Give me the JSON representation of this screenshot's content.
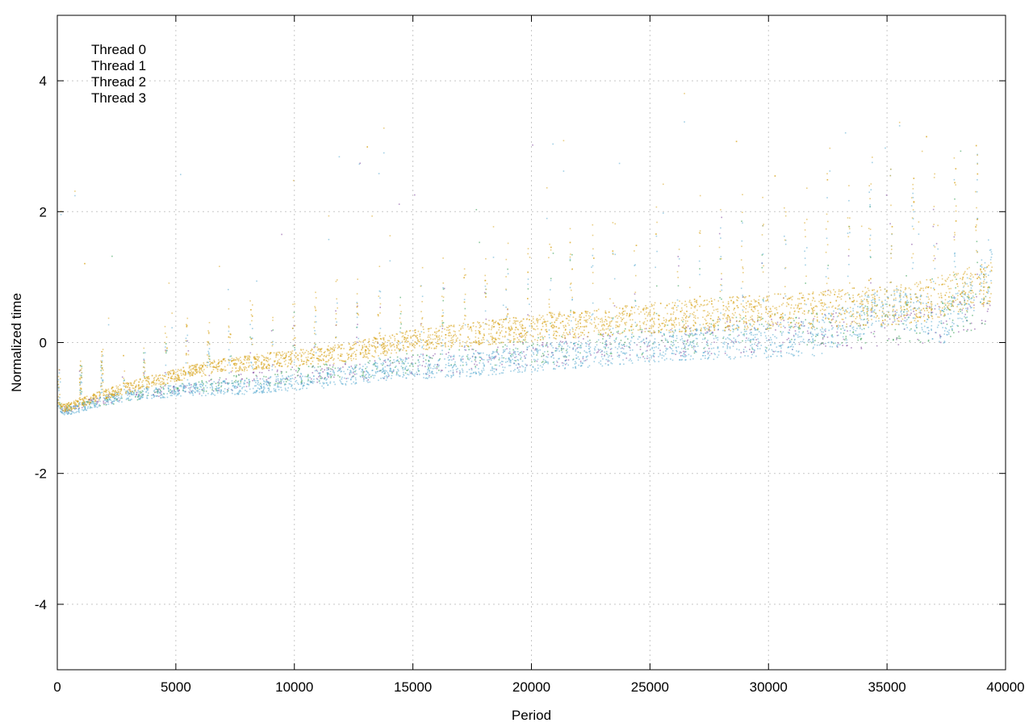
{
  "chart_data": {
    "type": "scatter",
    "title": "",
    "xlabel": "Period",
    "ylabel": "Normalized time",
    "xlim": [
      0,
      40000
    ],
    "ylim": [
      -5,
      5
    ],
    "xticks": [
      0,
      5000,
      10000,
      15000,
      20000,
      25000,
      30000,
      35000,
      40000
    ],
    "yticks": [
      -4,
      -2,
      0,
      2,
      4
    ],
    "grid": true,
    "legend_position": "top-left",
    "x_extent": [
      0,
      39400
    ],
    "series": [
      {
        "name": "Thread 0",
        "color": "#7b3f9a",
        "points": [
          [
            500,
            -1.02
          ],
          [
            1500,
            -0.92
          ],
          [
            3000,
            -0.8
          ],
          [
            6000,
            -0.72
          ],
          [
            9000,
            -0.55
          ],
          [
            12000,
            -0.5
          ],
          [
            15000,
            -0.4
          ],
          [
            18000,
            -0.3
          ],
          [
            21000,
            -0.2
          ],
          [
            24000,
            -0.1
          ],
          [
            27000,
            0.0
          ],
          [
            30000,
            0.05
          ],
          [
            33000,
            0.1
          ],
          [
            36000,
            0.15
          ],
          [
            39000,
            0.3
          ]
        ]
      },
      {
        "name": "Thread 1",
        "color": "#2b9a4c",
        "points": [
          [
            700,
            -1.0
          ],
          [
            2000,
            -0.9
          ],
          [
            4000,
            -0.78
          ],
          [
            7000,
            -0.65
          ],
          [
            10000,
            -0.55
          ],
          [
            13000,
            -0.42
          ],
          [
            16000,
            -0.32
          ],
          [
            19000,
            -0.22
          ],
          [
            22000,
            -0.12
          ],
          [
            25000,
            -0.02
          ],
          [
            28000,
            0.05
          ],
          [
            31000,
            0.12
          ],
          [
            34000,
            0.18
          ],
          [
            37000,
            0.25
          ],
          [
            39200,
            0.5
          ]
        ]
      },
      {
        "name": "Thread 2",
        "color": "#56a9cf",
        "points": [
          [
            500,
            -1.05
          ],
          [
            2500,
            -0.85
          ],
          [
            5000,
            -0.75
          ],
          [
            8000,
            -0.7
          ],
          [
            11000,
            -0.6
          ],
          [
            14000,
            -0.45
          ],
          [
            17000,
            -0.4
          ],
          [
            20000,
            -0.3
          ],
          [
            23000,
            -0.2
          ],
          [
            26000,
            -0.1
          ],
          [
            29000,
            -0.05
          ],
          [
            32000,
            0.0
          ],
          [
            35000,
            0.5
          ],
          [
            37500,
            0.2
          ],
          [
            39300,
            1.0
          ]
        ]
      },
      {
        "name": "Thread 3",
        "color": "#d9a521",
        "points": [
          [
            400,
            -1.0
          ],
          [
            2000,
            -0.8
          ],
          [
            4000,
            -0.6
          ],
          [
            6500,
            -0.4
          ],
          [
            9000,
            -0.3
          ],
          [
            12000,
            -0.2
          ],
          [
            15000,
            0.0
          ],
          [
            18000,
            0.1
          ],
          [
            21000,
            0.2
          ],
          [
            24000,
            0.3
          ],
          [
            27000,
            0.35
          ],
          [
            30000,
            0.4
          ],
          [
            33000,
            0.45
          ],
          [
            36000,
            0.5
          ],
          [
            39200,
            0.8
          ]
        ]
      }
    ]
  }
}
